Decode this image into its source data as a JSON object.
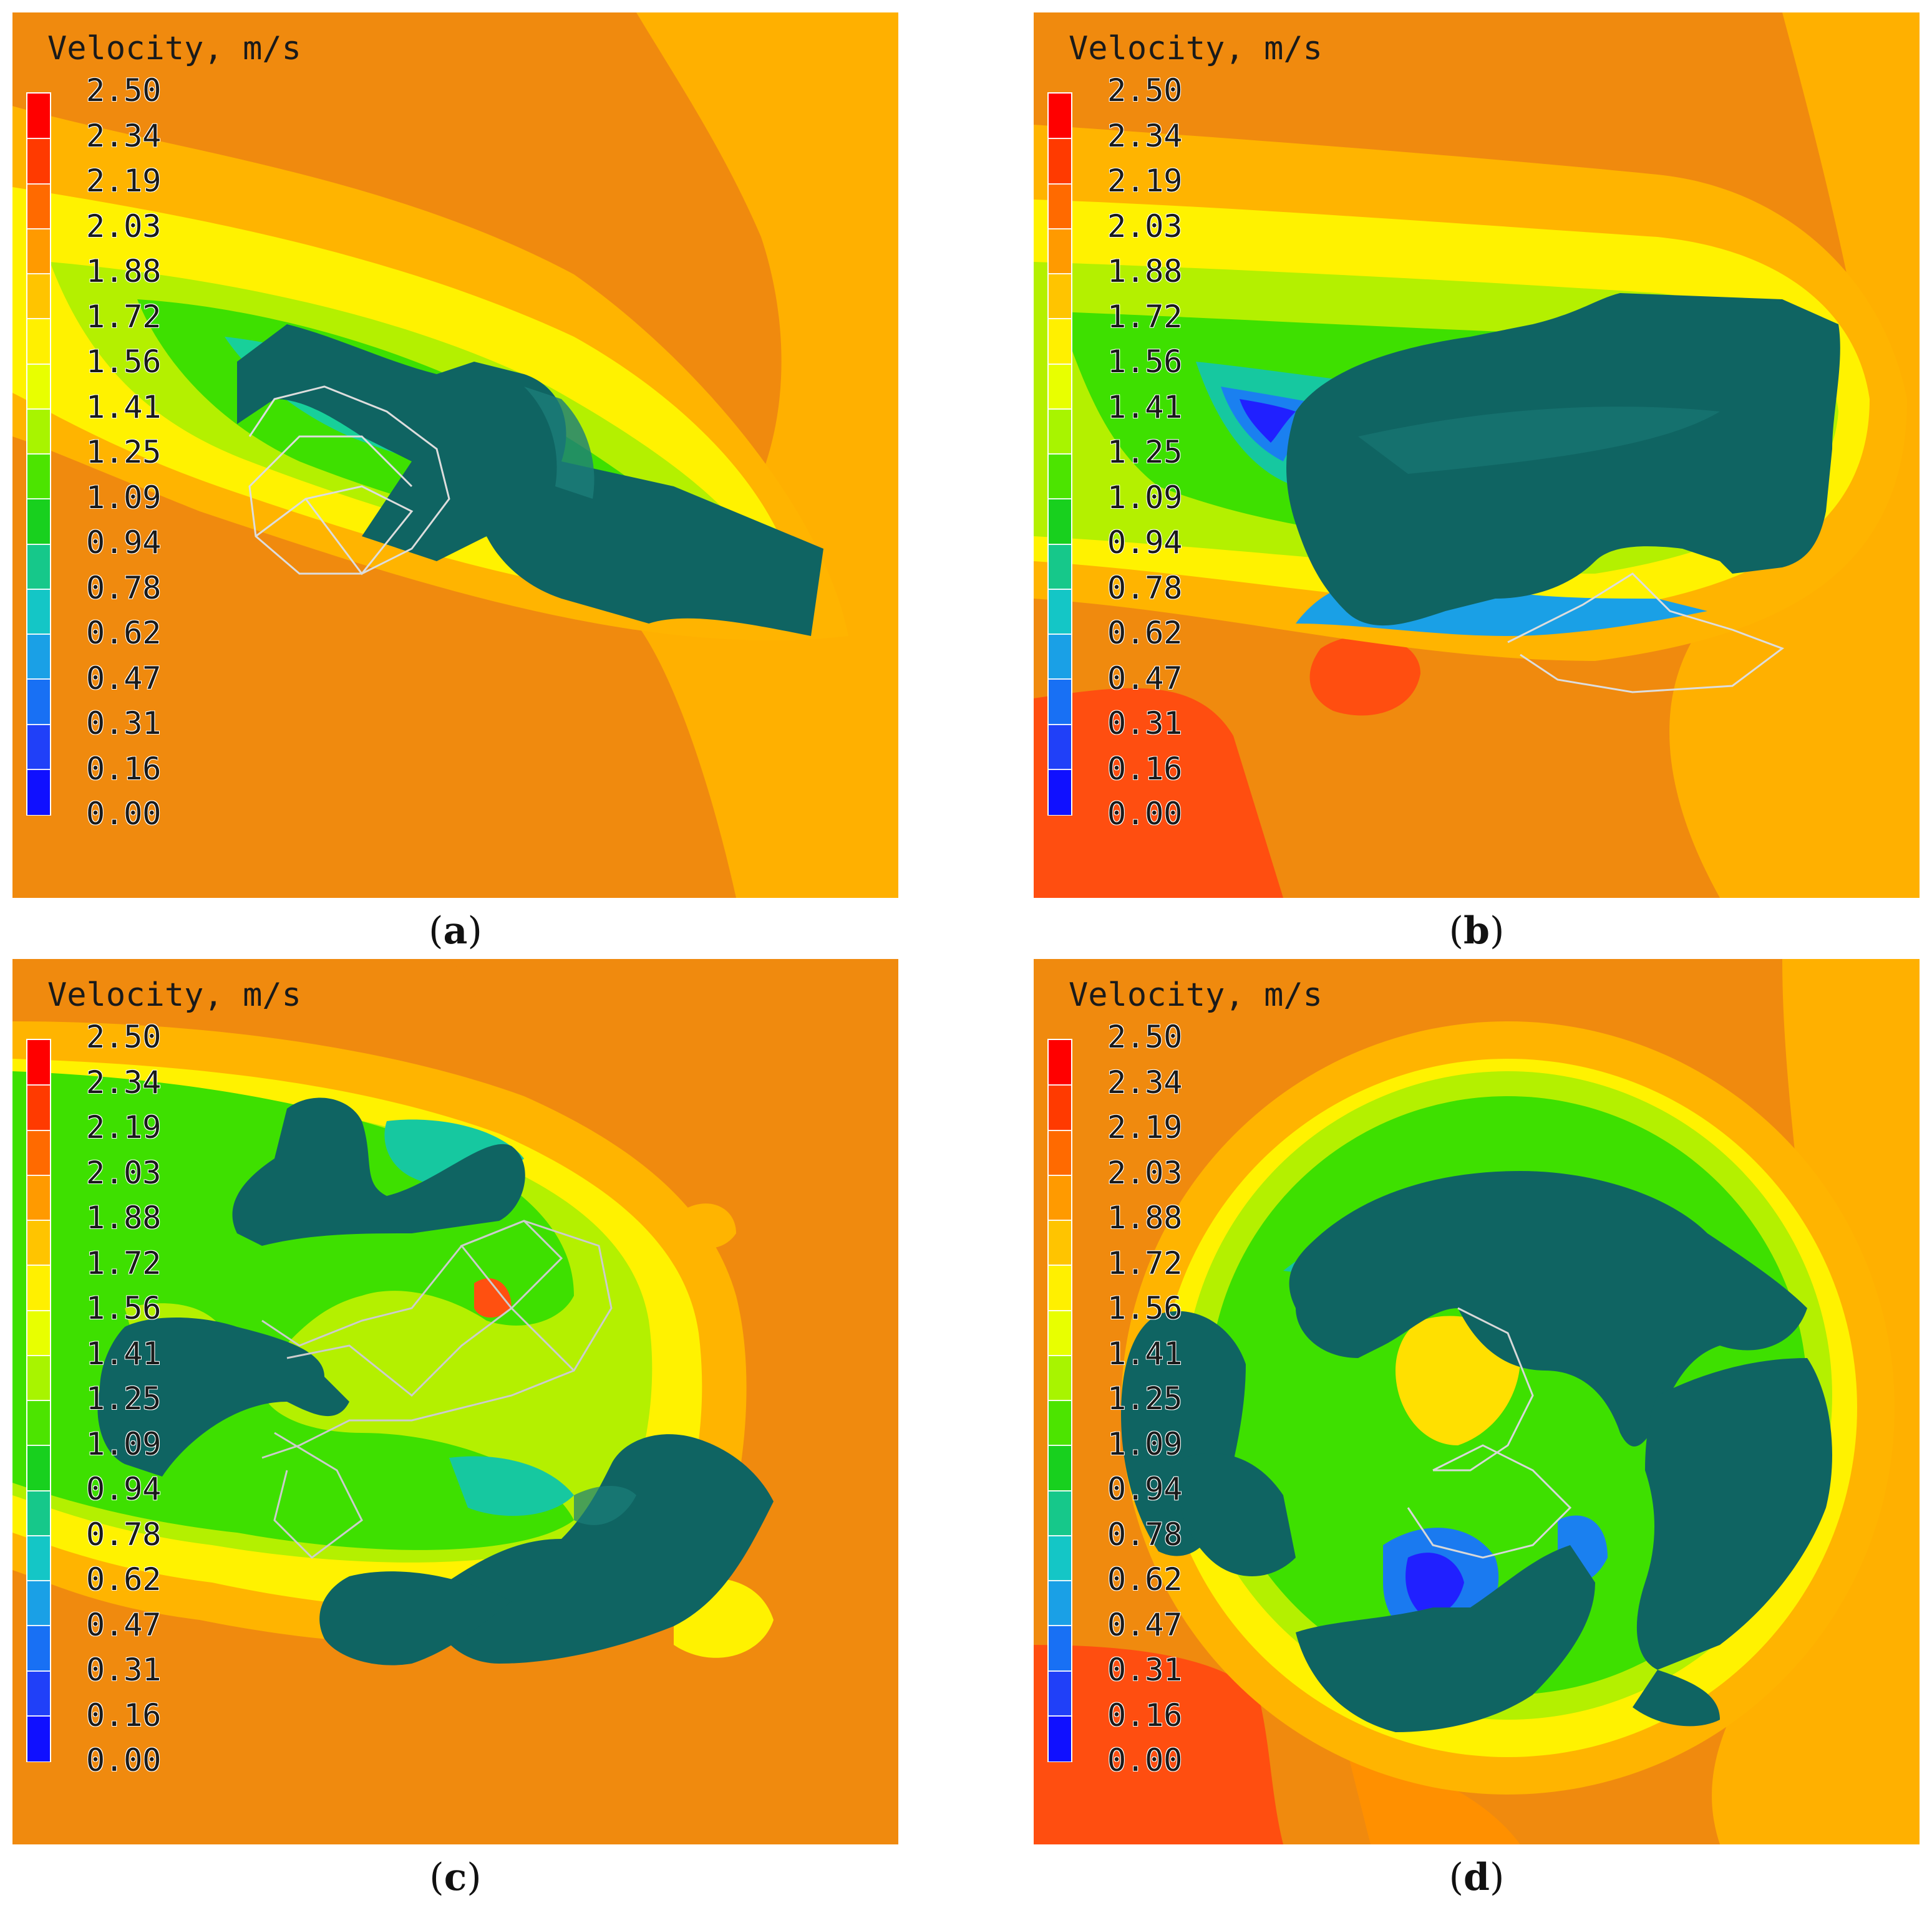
{
  "legend": {
    "title": "Velocity, m/s",
    "ticks": [
      "2.50",
      "2.34",
      "2.19",
      "2.03",
      "1.88",
      "1.72",
      "1.56",
      "1.41",
      "1.25",
      "1.09",
      "0.94",
      "0.78",
      "0.62",
      "0.47",
      "0.31",
      "0.16",
      "0.00"
    ],
    "colors": [
      "#ff0000",
      "#ff3a00",
      "#ff6a00",
      "#ff9a00",
      "#ffc400",
      "#fff000",
      "#e8ff00",
      "#a8f400",
      "#4ce400",
      "#18d01e",
      "#16c88a",
      "#14c6c6",
      "#1aa0e6",
      "#1870f4",
      "#2040f8",
      "#1010ff"
    ]
  },
  "panels": [
    {
      "caption_open": "(",
      "caption_letter": "a",
      "caption_close": ")"
    },
    {
      "caption_open": "(",
      "caption_letter": "b",
      "caption_close": ")"
    },
    {
      "caption_open": "(",
      "caption_letter": "c",
      "caption_close": ")"
    },
    {
      "caption_open": "(",
      "caption_letter": "d",
      "caption_close": ")"
    }
  ],
  "colors": {
    "body": "#0f6462",
    "body_light": "#1b7d79",
    "background_orange": "#f08a0e",
    "deep_orange": "#ff5010",
    "amber": "#ffb400",
    "yellow": "#fff200",
    "lime": "#b4f000",
    "green": "#3ee000",
    "cyan": "#18c8b4",
    "blue": "#1a7af0",
    "navy": "#2020ff"
  }
}
